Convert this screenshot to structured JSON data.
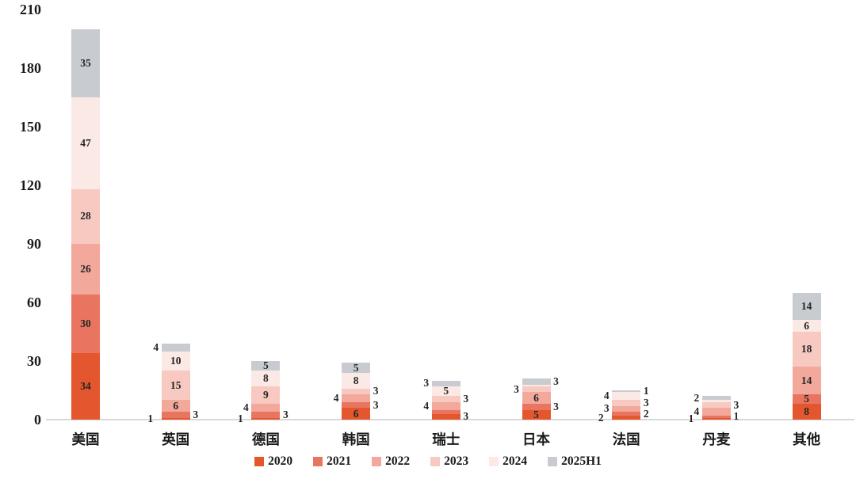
{
  "chart_data": {
    "type": "bar",
    "stacked": true,
    "title": "",
    "xlabel": "",
    "ylabel": "",
    "ylim": [
      0,
      210
    ],
    "yticks": [
      0,
      30,
      60,
      90,
      120,
      150,
      180,
      210
    ],
    "grid": false,
    "legend_position": "bottom",
    "categories": [
      "美国",
      "英国",
      "德国",
      "韩国",
      "瑞士",
      "日本",
      "法国",
      "丹麦",
      "其他"
    ],
    "series": [
      {
        "name": "2020",
        "color": "#E4562D",
        "values": [
          34,
          1,
          1,
          6,
          3,
          5,
          2,
          1,
          8
        ]
      },
      {
        "name": "2021",
        "color": "#E97560",
        "values": [
          30,
          3,
          3,
          3,
          2,
          3,
          2,
          1,
          5
        ]
      },
      {
        "name": "2022",
        "color": "#F2A89A",
        "values": [
          26,
          6,
          4,
          4,
          4,
          6,
          3,
          4,
          14
        ]
      },
      {
        "name": "2023",
        "color": "#F7C9C0",
        "values": [
          28,
          15,
          9,
          3,
          3,
          3,
          3,
          3,
          18
        ]
      },
      {
        "name": "2024",
        "color": "#FBE9E5",
        "values": [
          47,
          10,
          8,
          8,
          5,
          1,
          4,
          1,
          6
        ]
      },
      {
        "name": "2025H1",
        "color": "#C8CCD1",
        "values": [
          35,
          4,
          5,
          5,
          3,
          3,
          1,
          2,
          14
        ]
      }
    ],
    "totals": [
      200,
      39,
      30,
      29,
      20,
      21,
      15,
      12,
      65
    ],
    "hidden_labels": [
      [
        4,
        1
      ],
      [
        5,
        4
      ],
      [
        7,
        4
      ]
    ],
    "axis_line_color": "#D9D9D9",
    "label_color": "#262626"
  }
}
